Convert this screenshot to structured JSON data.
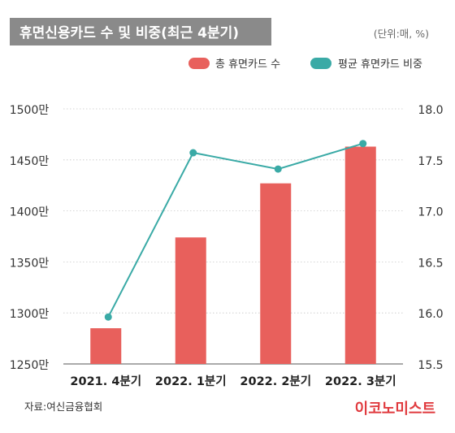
{
  "chart_data": {
    "type": "bar",
    "title": "휴면신용카드 수 및 비중(최근 4분기)",
    "unit_note": "(단위:매, %)",
    "categories": [
      "2021. 4분기",
      "2022. 1분기",
      "2022. 2분기",
      "2022. 3분기"
    ],
    "series": [
      {
        "name": "총 휴면카드 수",
        "type": "bar",
        "axis": "left",
        "color": "#e8605c",
        "values": [
          12850000,
          13740000,
          14270000,
          14630000
        ]
      },
      {
        "name": "평균 휴면카드 비중",
        "type": "line",
        "axis": "right",
        "color": "#3aaaa6",
        "values": [
          15.96,
          17.57,
          17.41,
          17.66
        ]
      }
    ],
    "y_left": {
      "ylim": [
        1250,
        1500
      ],
      "ticks": [
        {
          "value": 1500,
          "label": "1500만"
        },
        {
          "value": 1450,
          "label": "1450만"
        },
        {
          "value": 1400,
          "label": "1400만"
        },
        {
          "value": 1350,
          "label": "1350만"
        },
        {
          "value": 1300,
          "label": "1300만"
        },
        {
          "value": 1250,
          "label": "1250만"
        }
      ]
    },
    "y_right": {
      "ylim": [
        15.5,
        18.0
      ],
      "ticks": [
        {
          "value": 18.0,
          "label": "18.0"
        },
        {
          "value": 17.5,
          "label": "17.5"
        },
        {
          "value": 17.0,
          "label": "17.0"
        },
        {
          "value": 16.5,
          "label": "16.5"
        },
        {
          "value": 16.0,
          "label": "16.0"
        },
        {
          "value": 15.5,
          "label": "15.5"
        }
      ]
    },
    "grid": true,
    "legend_position": "top-right",
    "source": "자료:여신금융협회",
    "brand": "이코노미스트",
    "colors": {
      "title_bg": "#8a8a8a",
      "title_text": "#ffffff",
      "bar": "#e8605c",
      "line": "#3aaaa6",
      "brand": "#e03a3e"
    }
  }
}
